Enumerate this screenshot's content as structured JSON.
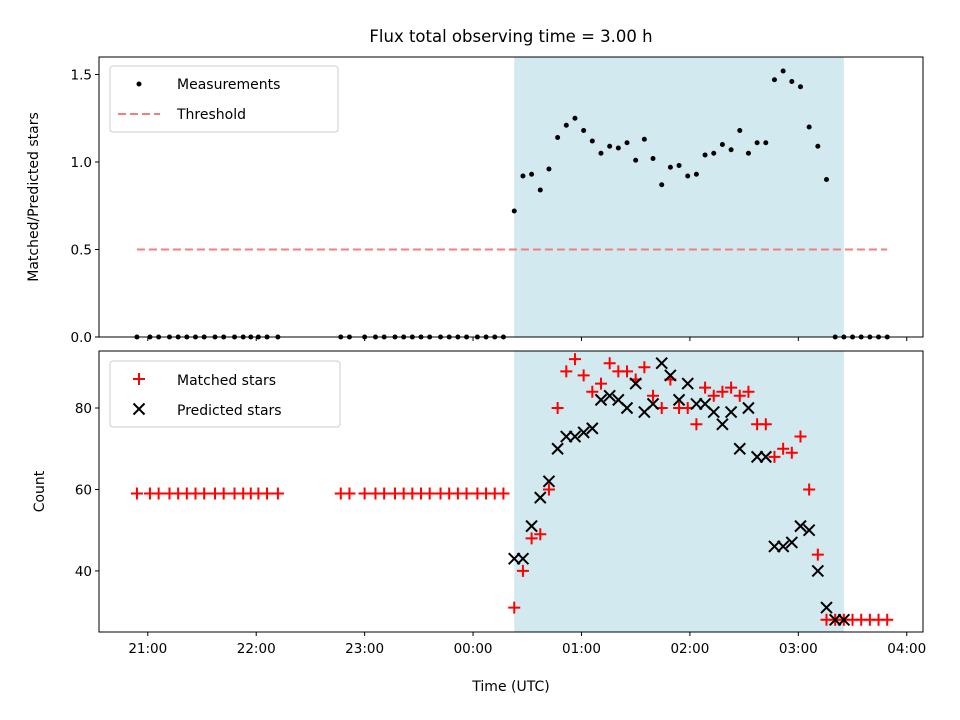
{
  "chart_data": [
    {
      "type": "scatter",
      "title": "Flux total observing time = 3.00 h",
      "ylabel": "Matched/Predicted stars",
      "xlabel": "",
      "x_unit": "hours since 21:00 UTC",
      "xlim": [
        -0.45,
        7.15
      ],
      "ylim": [
        0,
        1.6
      ],
      "yticks": [
        0.0,
        0.5,
        1.0,
        1.5
      ],
      "ytick_labels": [
        "0.0",
        "0.5",
        "1.0",
        "1.5"
      ],
      "xtick_labels_shown": false,
      "shaded_window_x": [
        3.38,
        6.42
      ],
      "shade_color": "#d2e9f0",
      "legend_position": "upper left",
      "series": [
        {
          "name": "Measurements",
          "marker": "dot",
          "color": "#000000",
          "x": [
            -0.1,
            0.02,
            0.1,
            0.2,
            0.28,
            0.36,
            0.44,
            0.52,
            0.62,
            0.7,
            0.8,
            0.88,
            0.95,
            1.02,
            1.1,
            1.2,
            1.78,
            1.86,
            2.0,
            2.1,
            2.18,
            2.28,
            2.36,
            2.44,
            2.52,
            2.6,
            2.7,
            2.78,
            2.86,
            2.94,
            3.04,
            3.12,
            3.2,
            3.28,
            3.38,
            3.46,
            3.54,
            3.62,
            3.7,
            3.78,
            3.86,
            3.94,
            4.02,
            4.1,
            4.18,
            4.26,
            4.34,
            4.42,
            4.5,
            4.58,
            4.66,
            4.74,
            4.82,
            4.9,
            4.98,
            5.06,
            5.14,
            5.22,
            5.3,
            5.38,
            5.46,
            5.54,
            5.62,
            5.7,
            5.78,
            5.86,
            5.94,
            6.02,
            6.1,
            6.18,
            6.26,
            6.34,
            6.42,
            6.5,
            6.58,
            6.66,
            6.74,
            6.82
          ],
          "y": [
            0,
            0,
            0,
            0,
            0,
            0,
            0,
            0,
            0,
            0,
            0,
            0,
            0,
            0,
            0,
            0,
            0,
            0,
            0,
            0,
            0,
            0,
            0,
            0,
            0,
            0,
            0,
            0,
            0,
            0,
            0,
            0,
            0,
            0,
            0.72,
            0.92,
            0.93,
            0.84,
            0.96,
            1.14,
            1.21,
            1.25,
            1.18,
            1.12,
            1.05,
            1.09,
            1.08,
            1.11,
            1.01,
            1.13,
            1.02,
            0.87,
            0.97,
            0.98,
            0.92,
            0.93,
            1.04,
            1.05,
            1.1,
            1.07,
            1.18,
            1.05,
            1.11,
            1.11,
            1.47,
            1.52,
            1.46,
            1.43,
            1.2,
            1.09,
            0.9,
            0,
            0,
            0,
            0,
            0,
            0,
            0
          ]
        },
        {
          "name": "Threshold",
          "marker": "dashed-line",
          "color": "#f08080",
          "x": [
            -0.1,
            6.82
          ],
          "y": [
            0.5,
            0.5
          ]
        }
      ]
    },
    {
      "type": "scatter",
      "title": "",
      "xlabel": "Time (UTC)",
      "ylabel": "Count",
      "x_unit": "hours since 21:00 UTC",
      "xlim": [
        -0.45,
        7.15
      ],
      "ylim": [
        25,
        94
      ],
      "xticks": [
        0,
        1,
        2,
        3,
        4,
        5,
        6,
        7
      ],
      "xtick_labels": [
        "21:00",
        "22:00",
        "23:00",
        "00:00",
        "01:00",
        "02:00",
        "03:00",
        "04:00"
      ],
      "yticks": [
        40,
        60,
        80
      ],
      "ytick_labels": [
        "40",
        "60",
        "80"
      ],
      "shaded_window_x": [
        3.38,
        6.42
      ],
      "shade_color": "#d2e9f0",
      "legend_position": "upper left",
      "series": [
        {
          "name": "Matched stars",
          "marker": "plus",
          "color": "#ff0000",
          "x": [
            -0.1,
            0.02,
            0.1,
            0.2,
            0.28,
            0.36,
            0.44,
            0.52,
            0.62,
            0.7,
            0.8,
            0.88,
            0.95,
            1.02,
            1.1,
            1.2,
            1.78,
            1.86,
            2.0,
            2.1,
            2.18,
            2.28,
            2.36,
            2.44,
            2.52,
            2.6,
            2.7,
            2.78,
            2.86,
            2.94,
            3.04,
            3.12,
            3.2,
            3.28,
            3.38,
            3.46,
            3.54,
            3.62,
            3.7,
            3.78,
            3.86,
            3.94,
            4.02,
            4.1,
            4.18,
            4.26,
            4.34,
            4.42,
            4.5,
            4.58,
            4.66,
            4.74,
            4.82,
            4.9,
            4.98,
            5.06,
            5.14,
            5.22,
            5.3,
            5.38,
            5.46,
            5.54,
            5.62,
            5.7,
            5.78,
            5.86,
            5.94,
            6.02,
            6.1,
            6.18,
            6.26,
            6.34,
            6.42,
            6.5,
            6.58,
            6.66,
            6.74,
            6.82
          ],
          "y": [
            59,
            59,
            59,
            59,
            59,
            59,
            59,
            59,
            59,
            59,
            59,
            59,
            59,
            59,
            59,
            59,
            59,
            59,
            59,
            59,
            59,
            59,
            59,
            59,
            59,
            59,
            59,
            59,
            59,
            59,
            59,
            59,
            59,
            59,
            31,
            40,
            48,
            49,
            60,
            80,
            89,
            92,
            88,
            84,
            86,
            91,
            89,
            89,
            87,
            90,
            83,
            80,
            87,
            80,
            80,
            76,
            85,
            83,
            84,
            85,
            83,
            84,
            76,
            76,
            68,
            70,
            69,
            73,
            60,
            44,
            28,
            28,
            28,
            28,
            28,
            28,
            28,
            28
          ]
        },
        {
          "name": "Predicted stars",
          "marker": "x",
          "color": "#000000",
          "x": [
            3.38,
            3.46,
            3.54,
            3.62,
            3.7,
            3.78,
            3.86,
            3.94,
            4.02,
            4.1,
            4.18,
            4.26,
            4.34,
            4.42,
            4.5,
            4.58,
            4.66,
            4.74,
            4.82,
            4.9,
            4.98,
            5.06,
            5.14,
            5.22,
            5.3,
            5.38,
            5.46,
            5.54,
            5.62,
            5.7,
            5.78,
            5.86,
            5.94,
            6.02,
            6.1,
            6.18,
            6.26,
            6.34,
            6.42
          ],
          "y": [
            43,
            43,
            51,
            58,
            62,
            70,
            73,
            73,
            74,
            75,
            82,
            83,
            82,
            80,
            86,
            79,
            81,
            91,
            88,
            82,
            86,
            81,
            81,
            79,
            76,
            79,
            70,
            80,
            68,
            68,
            46,
            46,
            47,
            51,
            50,
            40,
            31,
            28,
            28
          ]
        }
      ]
    }
  ]
}
